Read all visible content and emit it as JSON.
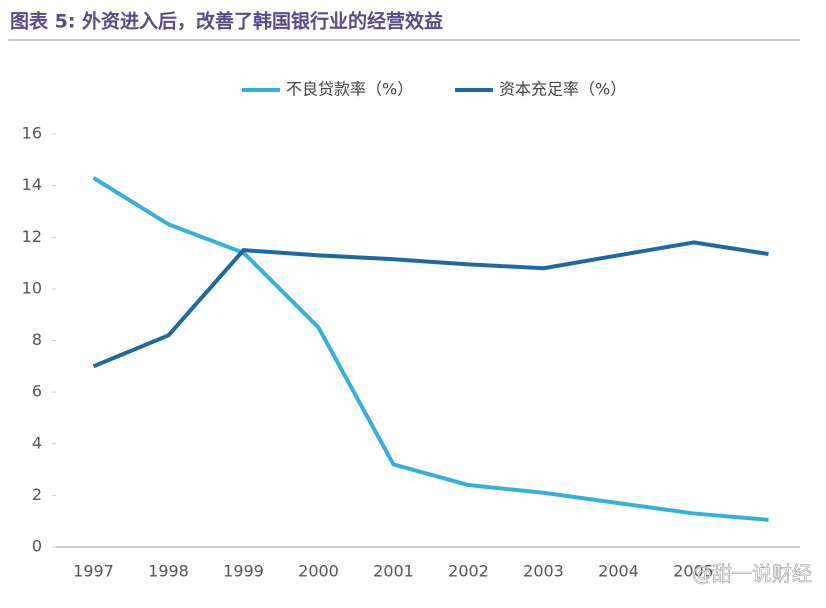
{
  "chart_data": {
    "type": "line",
    "title": "图表 5: 外资进入后，改善了韩国银行业的经营效益",
    "categories": [
      "1997",
      "1998",
      "1999",
      "2000",
      "2001",
      "2002",
      "2003",
      "2004",
      "2005",
      null
    ],
    "series": [
      {
        "name": "不良贷款率（%）",
        "color": "#33b1dc",
        "values": [
          14.3,
          12.5,
          11.4,
          8.5,
          3.2,
          2.4,
          2.1,
          1.7,
          1.3,
          1.05
        ]
      },
      {
        "name": "资本充足率（%）",
        "color": "#1c69a3",
        "values": [
          7.0,
          8.2,
          11.5,
          11.3,
          11.15,
          10.95,
          10.8,
          11.3,
          11.8,
          11.35
        ]
      }
    ],
    "ylim": [
      0,
      16
    ],
    "yticks": [
      0,
      2,
      4,
      6,
      8,
      10,
      12,
      14,
      16
    ],
    "watermark": "@甜一说财经"
  }
}
